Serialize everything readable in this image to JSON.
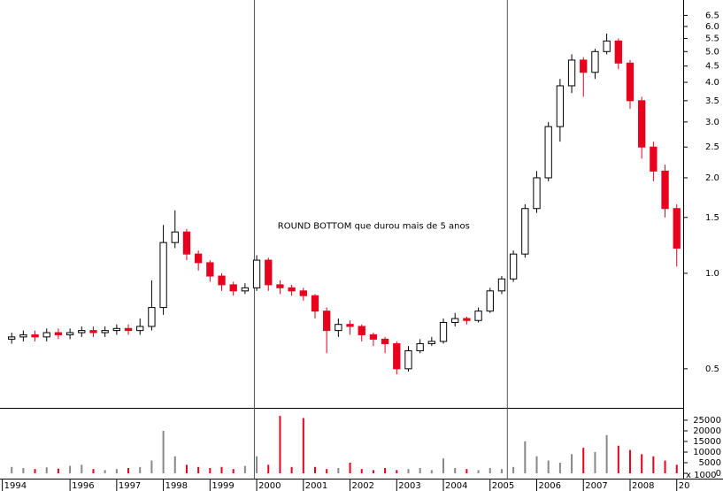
{
  "chart_data": {
    "type": "candlestick",
    "annotation": "ROUND BOTTOM que durou mais de 5 anos",
    "annotation_position": [
      2000.45,
      1.41
    ],
    "vlines": [
      1999.95,
      2005.37
    ],
    "log_scale": true,
    "up_color": "#ffffff",
    "down_color": "#e8001c",
    "x": [
      1994.75,
      1995.0,
      1995.25,
      1995.5,
      1995.75,
      1996.0,
      1996.25,
      1996.5,
      1996.75,
      1997.0,
      1997.25,
      1997.5,
      1997.75,
      1998.0,
      1998.25,
      1998.5,
      1998.75,
      1999.0,
      1999.25,
      1999.5,
      1999.75,
      2000.0,
      2000.25,
      2000.5,
      2000.75,
      2001.0,
      2001.25,
      2001.5,
      2001.75,
      2002.0,
      2002.25,
      2002.5,
      2002.75,
      2003.0,
      2003.25,
      2003.5,
      2003.75,
      2004.0,
      2004.25,
      2004.5,
      2004.75,
      2005.0,
      2005.25,
      2005.5,
      2005.75,
      2006.0,
      2006.25,
      2006.5,
      2006.75,
      2007.0,
      2007.25,
      2007.5,
      2007.75,
      2008.0,
      2008.25,
      2008.5,
      2008.75,
      2009.0
    ],
    "open": [
      0.62,
      0.63,
      0.64,
      0.63,
      0.65,
      0.64,
      0.65,
      0.66,
      0.65,
      0.66,
      0.67,
      0.66,
      0.68,
      0.78,
      1.25,
      1.35,
      1.15,
      1.08,
      0.98,
      0.92,
      0.88,
      0.9,
      1.1,
      0.92,
      0.9,
      0.88,
      0.85,
      0.76,
      0.66,
      0.69,
      0.68,
      0.64,
      0.62,
      0.6,
      0.5,
      0.57,
      0.6,
      0.61,
      0.7,
      0.72,
      0.71,
      0.76,
      0.88,
      0.96,
      1.15,
      1.6,
      2.0,
      2.9,
      3.9,
      4.7,
      4.3,
      5.0,
      5.4,
      4.6,
      3.5,
      2.5,
      2.1,
      1.6
    ],
    "high": [
      0.65,
      0.66,
      0.66,
      0.67,
      0.67,
      0.67,
      0.68,
      0.68,
      0.68,
      0.69,
      0.69,
      0.72,
      0.95,
      1.42,
      1.58,
      1.38,
      1.18,
      1.1,
      1.0,
      0.94,
      0.93,
      1.14,
      1.12,
      0.95,
      0.92,
      0.9,
      0.86,
      0.78,
      0.72,
      0.71,
      0.69,
      0.65,
      0.63,
      0.61,
      0.59,
      0.62,
      0.63,
      0.72,
      0.75,
      0.73,
      0.78,
      0.9,
      0.98,
      1.18,
      1.65,
      2.1,
      3.0,
      4.1,
      4.9,
      4.8,
      5.1,
      5.7,
      5.5,
      4.7,
      3.6,
      2.6,
      2.2,
      1.65
    ],
    "low": [
      0.6,
      0.61,
      0.61,
      0.61,
      0.62,
      0.62,
      0.63,
      0.63,
      0.63,
      0.64,
      0.64,
      0.64,
      0.66,
      0.74,
      1.2,
      1.1,
      1.02,
      0.94,
      0.88,
      0.85,
      0.86,
      0.88,
      0.88,
      0.86,
      0.85,
      0.82,
      0.72,
      0.56,
      0.63,
      0.64,
      0.61,
      0.59,
      0.56,
      0.48,
      0.49,
      0.56,
      0.59,
      0.6,
      0.68,
      0.69,
      0.7,
      0.75,
      0.86,
      0.94,
      1.12,
      1.55,
      1.95,
      2.6,
      3.7,
      3.6,
      4.1,
      4.9,
      4.4,
      3.3,
      2.3,
      1.95,
      1.5,
      1.05
    ],
    "close": [
      0.63,
      0.64,
      0.63,
      0.65,
      0.64,
      0.65,
      0.66,
      0.65,
      0.66,
      0.67,
      0.66,
      0.68,
      0.78,
      1.25,
      1.35,
      1.15,
      1.08,
      0.98,
      0.92,
      0.88,
      0.9,
      1.1,
      0.92,
      0.9,
      0.88,
      0.85,
      0.76,
      0.66,
      0.69,
      0.68,
      0.64,
      0.62,
      0.6,
      0.5,
      0.57,
      0.6,
      0.61,
      0.7,
      0.72,
      0.71,
      0.76,
      0.88,
      0.96,
      1.15,
      1.6,
      2.0,
      2.9,
      3.9,
      4.7,
      4.3,
      5.0,
      5.4,
      4.6,
      3.5,
      2.5,
      2.1,
      1.6,
      1.2
    ],
    "volume": [
      3000,
      2500,
      2000,
      2800,
      2200,
      3500,
      4000,
      2000,
      1500,
      2000,
      2500,
      3000,
      6000,
      20000,
      8000,
      4000,
      3000,
      2500,
      3000,
      2000,
      3500,
      8000,
      4000,
      27000,
      3000,
      26000,
      3000,
      2000,
      2500,
      5000,
      2000,
      1500,
      2500,
      1500,
      2000,
      2500,
      1500,
      7000,
      2500,
      2000,
      1500,
      2500,
      2000,
      3000,
      15000,
      8000,
      6000,
      5000,
      9000,
      12000,
      10000,
      18000,
      13000,
      11000,
      9000,
      8000,
      6000,
      4000
    ],
    "xlim": [
      1994.5,
      2009.1
    ],
    "xticks": [
      {
        "value": 1994.55,
        "label": "1994"
      },
      1996,
      1997,
      1998,
      1999,
      2000,
      2001,
      2002,
      2003,
      2004,
      2005,
      2006,
      2007,
      2008,
      {
        "value": 2009,
        "label": "20"
      }
    ],
    "ylim": [
      0.379,
      7.27
    ],
    "yticks": [
      0.5,
      {
        "value": 1,
        "label": "1.0"
      },
      1.5,
      {
        "value": 2,
        "label": "2.0"
      },
      2.5,
      {
        "value": 3,
        "label": "3.0"
      },
      3.5,
      {
        "value": 4,
        "label": "4.0"
      },
      4.5,
      {
        "value": 5,
        "label": "5.0"
      },
      5.5,
      {
        "value": 6,
        "label": "6.0"
      },
      6.5
    ],
    "volume_ylim": [
      0,
      30400
    ],
    "volume_ticks": [
      0,
      5000,
      10000,
      15000,
      20000,
      25000
    ],
    "volume_unit_label": "x 1000"
  }
}
